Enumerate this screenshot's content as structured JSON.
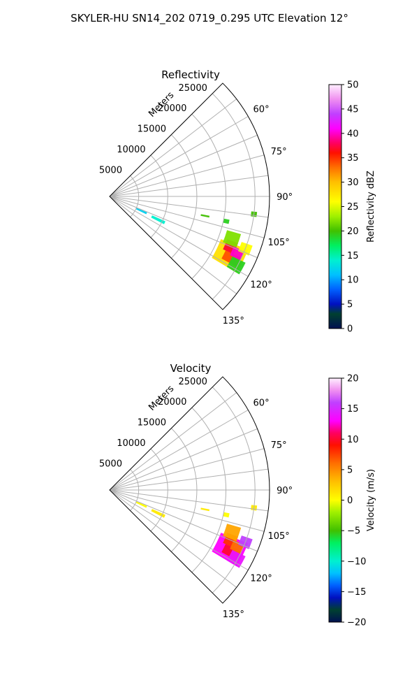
{
  "figure": {
    "title": "SKYLER-HU  SN14_202  0719_0.295 UTC Elevation 12°"
  },
  "chart_data": [
    {
      "type": "heatmap",
      "subtype": "polar-sector",
      "title": "Reflectivity",
      "radial_label": "Meters",
      "radial_ticks": [
        5000,
        10000,
        15000,
        20000,
        25000
      ],
      "radial_tick_labels": [
        "5000",
        "10000",
        "15000",
        "20000",
        "25000"
      ],
      "rlim": [
        0,
        27500
      ],
      "angle_range_deg": [
        45,
        135
      ],
      "angle_ticks": [
        60,
        75,
        90,
        105,
        120,
        135
      ],
      "angle_tick_labels": [
        "60°",
        "75°",
        "90°",
        "105°",
        "120°",
        "135°"
      ],
      "grid": true,
      "colorbar": {
        "label": "Reflectivity dBZ",
        "vmin": 0,
        "vmax": 50,
        "ticks": [
          0,
          5,
          10,
          15,
          20,
          25,
          30,
          35,
          40,
          45,
          50
        ],
        "tick_labels": [
          "0",
          "5",
          "10",
          "15",
          "20",
          "25",
          "30",
          "35",
          "40",
          "45",
          "50"
        ],
        "stops": [
          {
            "v": 0,
            "c": "#001050"
          },
          {
            "v": 3,
            "c": "#004030"
          },
          {
            "v": 5,
            "c": "#0010c0"
          },
          {
            "v": 8,
            "c": "#0060ff"
          },
          {
            "v": 11,
            "c": "#00c0ff"
          },
          {
            "v": 14,
            "c": "#00f0d0"
          },
          {
            "v": 17,
            "c": "#00f060"
          },
          {
            "v": 20,
            "c": "#40c000"
          },
          {
            "v": 23,
            "c": "#a0f000"
          },
          {
            "v": 26,
            "c": "#ffff00"
          },
          {
            "v": 30,
            "c": "#ffc000"
          },
          {
            "v": 33,
            "c": "#ff7000"
          },
          {
            "v": 36,
            "c": "#ff1000"
          },
          {
            "v": 38,
            "c": "#ff0060"
          },
          {
            "v": 41,
            "c": "#ff00ff"
          },
          {
            "v": 44,
            "c": "#c040ff"
          },
          {
            "v": 47,
            "c": "#f090f0"
          },
          {
            "v": 50,
            "c": "#fff0ff"
          }
        ]
      },
      "echo_regions": [
        {
          "az": [
            111,
            121
          ],
          "r": [
            20500,
            25500
          ],
          "value": 28
        },
        {
          "az": [
            110,
            115
          ],
          "r": [
            21500,
            23500
          ],
          "value": 37
        },
        {
          "az": [
            115,
            119
          ],
          "r": [
            22000,
            25000
          ],
          "value": 34
        },
        {
          "az": [
            106,
            112
          ],
          "r": [
            21000,
            23500
          ],
          "value": 22
        },
        {
          "az": [
            116,
            121
          ],
          "r": [
            23500,
            26000
          ],
          "value": 19
        },
        {
          "az": [
            112,
            116
          ],
          "r": [
            23000,
            25000
          ],
          "value": 40
        },
        {
          "az": [
            109,
            113
          ],
          "r": [
            24000,
            26000
          ],
          "value": 26
        },
        {
          "az": [
            114,
            117
          ],
          "r": [
            8000,
            10500
          ],
          "value": 14
        },
        {
          "az": [
            113,
            116
          ],
          "r": [
            5000,
            7000
          ],
          "value": 12
        },
        {
          "az": [
            101,
            102
          ],
          "r": [
            16000,
            17500
          ],
          "value": 20
        },
        {
          "az": [
            101,
            103
          ],
          "r": [
            20000,
            21000
          ],
          "value": 19
        },
        {
          "az": [
            96,
            98
          ],
          "r": [
            24500,
            25500
          ],
          "value": 20
        }
      ]
    },
    {
      "type": "heatmap",
      "subtype": "polar-sector",
      "title": "Velocity",
      "radial_label": "Meters",
      "radial_ticks": [
        5000,
        10000,
        15000,
        20000,
        25000
      ],
      "radial_tick_labels": [
        "5000",
        "10000",
        "15000",
        "20000",
        "25000"
      ],
      "rlim": [
        0,
        27500
      ],
      "angle_range_deg": [
        45,
        135
      ],
      "angle_ticks": [
        60,
        75,
        90,
        105,
        120,
        135
      ],
      "angle_tick_labels": [
        "60°",
        "75°",
        "90°",
        "105°",
        "120°",
        "135°"
      ],
      "grid": true,
      "colorbar": {
        "label": "Velocity (m/s)",
        "vmin": -20,
        "vmax": 20,
        "ticks": [
          -20,
          -15,
          -10,
          -5,
          0,
          5,
          10,
          15,
          20
        ],
        "tick_labels": [
          "−20",
          "−15",
          "−10",
          "−5",
          "0",
          "5",
          "10",
          "15",
          "20"
        ],
        "stops": [
          {
            "v": -20,
            "c": "#001050"
          },
          {
            "v": -18,
            "c": "#004030"
          },
          {
            "v": -16,
            "c": "#0010c0"
          },
          {
            "v": -14,
            "c": "#0060ff"
          },
          {
            "v": -12,
            "c": "#00c0ff"
          },
          {
            "v": -10,
            "c": "#00f0d0"
          },
          {
            "v": -7,
            "c": "#00f060"
          },
          {
            "v": -5,
            "c": "#40c000"
          },
          {
            "v": -2,
            "c": "#a0f000"
          },
          {
            "v": 0,
            "c": "#ffff00"
          },
          {
            "v": 3,
            "c": "#ffc000"
          },
          {
            "v": 6,
            "c": "#ff7000"
          },
          {
            "v": 9,
            "c": "#ff1000"
          },
          {
            "v": 11,
            "c": "#ff0060"
          },
          {
            "v": 13,
            "c": "#ff00ff"
          },
          {
            "v": 16,
            "c": "#c040ff"
          },
          {
            "v": 18,
            "c": "#f090f0"
          },
          {
            "v": 20,
            "c": "#fff0ff"
          }
        ]
      },
      "echo_regions": [
        {
          "az": [
            111,
            121
          ],
          "r": [
            20500,
            25500
          ],
          "value": 13
        },
        {
          "az": [
            110,
            115
          ],
          "r": [
            21500,
            23500
          ],
          "value": 8
        },
        {
          "az": [
            115,
            119
          ],
          "r": [
            22000,
            25000
          ],
          "value": 10
        },
        {
          "az": [
            106,
            112
          ],
          "r": [
            21000,
            23500
          ],
          "value": 4
        },
        {
          "az": [
            116,
            121
          ],
          "r": [
            23500,
            26000
          ],
          "value": 14
        },
        {
          "az": [
            112,
            116
          ],
          "r": [
            23000,
            25000
          ],
          "value": 6
        },
        {
          "az": [
            109,
            113
          ],
          "r": [
            24000,
            26000
          ],
          "value": 16
        },
        {
          "az": [
            114,
            117
          ],
          "r": [
            8000,
            10500
          ],
          "value": 1
        },
        {
          "az": [
            113,
            116
          ],
          "r": [
            5000,
            7000
          ],
          "value": 0
        },
        {
          "az": [
            101,
            102
          ],
          "r": [
            16000,
            17500
          ],
          "value": 1
        },
        {
          "az": [
            101,
            103
          ],
          "r": [
            20000,
            21000
          ],
          "value": 0
        },
        {
          "az": [
            96,
            98
          ],
          "r": [
            24500,
            25500
          ],
          "value": 1
        }
      ]
    }
  ]
}
